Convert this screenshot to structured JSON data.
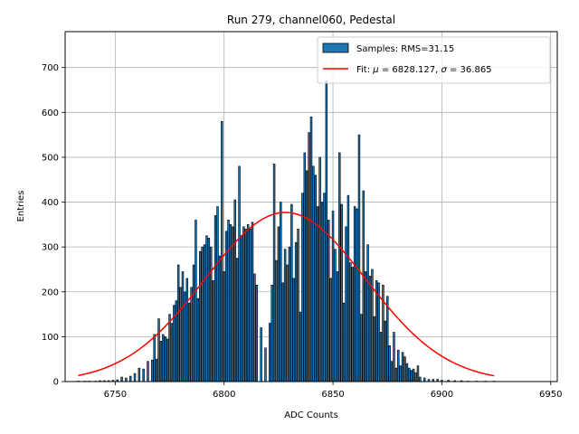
{
  "chart_data": {
    "type": "bar",
    "title": "Run 279, channel060, Pedestal",
    "xlabel": "ADC Counts",
    "ylabel": "Entries",
    "xlim": [
      6727,
      6953
    ],
    "ylim": [
      0,
      780
    ],
    "x_ticks": [
      6750,
      6800,
      6850,
      6900,
      6950
    ],
    "y_ticks": [
      0,
      100,
      200,
      300,
      400,
      500,
      600,
      700
    ],
    "grid": true,
    "legend_position": "top-right",
    "bar_color": "#1f77b4",
    "fit_color": "#ff0000",
    "series": [
      {
        "name": "Samples: RMS=31.15",
        "kind": "histogram",
        "bins": [
          [
            6733,
            1
          ],
          [
            6736,
            1
          ],
          [
            6738,
            1
          ],
          [
            6741,
            1
          ],
          [
            6743,
            2
          ],
          [
            6745,
            2
          ],
          [
            6747,
            2
          ],
          [
            6749,
            3
          ],
          [
            6751,
            4
          ],
          [
            6753,
            10
          ],
          [
            6755,
            8
          ],
          [
            6757,
            12
          ],
          [
            6759,
            18
          ],
          [
            6761,
            30
          ],
          [
            6763,
            28
          ],
          [
            6765,
            45
          ],
          [
            6767,
            48
          ],
          [
            6768,
            105
          ],
          [
            6769,
            50
          ],
          [
            6770,
            140
          ],
          [
            6771,
            90
          ],
          [
            6772,
            105
          ],
          [
            6773,
            100
          ],
          [
            6774,
            95
          ],
          [
            6775,
            150
          ],
          [
            6776,
            130
          ],
          [
            6777,
            170
          ],
          [
            6778,
            180
          ],
          [
            6779,
            260
          ],
          [
            6780,
            210
          ],
          [
            6781,
            245
          ],
          [
            6782,
            200
          ],
          [
            6783,
            230
          ],
          [
            6784,
            175
          ],
          [
            6785,
            210
          ],
          [
            6786,
            260
          ],
          [
            6787,
            360
          ],
          [
            6788,
            185
          ],
          [
            6789,
            290
          ],
          [
            6790,
            300
          ],
          [
            6791,
            305
          ],
          [
            6792,
            325
          ],
          [
            6793,
            320
          ],
          [
            6794,
            300
          ],
          [
            6795,
            225
          ],
          [
            6796,
            370
          ],
          [
            6797,
            390
          ],
          [
            6798,
            280
          ],
          [
            6799,
            580
          ],
          [
            6800,
            245
          ],
          [
            6801,
            335
          ],
          [
            6802,
            360
          ],
          [
            6803,
            350
          ],
          [
            6804,
            345
          ],
          [
            6805,
            405
          ],
          [
            6806,
            275
          ],
          [
            6807,
            480
          ],
          [
            6808,
            325
          ],
          [
            6809,
            345
          ],
          [
            6810,
            340
          ],
          [
            6811,
            350
          ],
          [
            6812,
            340
          ],
          [
            6813,
            355
          ],
          [
            6814,
            240
          ],
          [
            6815,
            215
          ],
          [
            6817,
            120
          ],
          [
            6819,
            75
          ],
          [
            6821,
            130
          ],
          [
            6822,
            215
          ],
          [
            6823,
            485
          ],
          [
            6824,
            270
          ],
          [
            6825,
            345
          ],
          [
            6826,
            400
          ],
          [
            6827,
            220
          ],
          [
            6828,
            295
          ],
          [
            6829,
            260
          ],
          [
            6830,
            300
          ],
          [
            6831,
            395
          ],
          [
            6832,
            230
          ],
          [
            6833,
            310
          ],
          [
            6834,
            340
          ],
          [
            6835,
            155
          ],
          [
            6836,
            420
          ],
          [
            6837,
            510
          ],
          [
            6838,
            470
          ],
          [
            6839,
            555
          ],
          [
            6840,
            590
          ],
          [
            6841,
            480
          ],
          [
            6842,
            460
          ],
          [
            6843,
            390
          ],
          [
            6844,
            500
          ],
          [
            6845,
            400
          ],
          [
            6846,
            420
          ],
          [
            6847,
            670
          ],
          [
            6848,
            360
          ],
          [
            6849,
            230
          ],
          [
            6850,
            380
          ],
          [
            6851,
            295
          ],
          [
            6852,
            245
          ],
          [
            6853,
            510
          ],
          [
            6854,
            395
          ],
          [
            6855,
            175
          ],
          [
            6856,
            345
          ],
          [
            6857,
            415
          ],
          [
            6858,
            265
          ],
          [
            6859,
            255
          ],
          [
            6860,
            390
          ],
          [
            6861,
            385
          ],
          [
            6862,
            550
          ],
          [
            6863,
            150
          ],
          [
            6864,
            425
          ],
          [
            6865,
            245
          ],
          [
            6866,
            305
          ],
          [
            6867,
            235
          ],
          [
            6868,
            250
          ],
          [
            6869,
            145
          ],
          [
            6870,
            225
          ],
          [
            6871,
            220
          ],
          [
            6872,
            110
          ],
          [
            6873,
            215
          ],
          [
            6874,
            135
          ],
          [
            6875,
            190
          ],
          [
            6876,
            80
          ],
          [
            6877,
            45
          ],
          [
            6878,
            110
          ],
          [
            6879,
            30
          ],
          [
            6880,
            70
          ],
          [
            6881,
            35
          ],
          [
            6882,
            65
          ],
          [
            6883,
            55
          ],
          [
            6884,
            40
          ],
          [
            6885,
            30
          ],
          [
            6886,
            25
          ],
          [
            6887,
            28
          ],
          [
            6888,
            20
          ],
          [
            6889,
            35
          ],
          [
            6890,
            10
          ],
          [
            6892,
            8
          ],
          [
            6894,
            5
          ],
          [
            6896,
            5
          ],
          [
            6898,
            5
          ],
          [
            6900,
            3
          ],
          [
            6903,
            3
          ],
          [
            6906,
            2
          ],
          [
            6909,
            2
          ],
          [
            6912,
            1
          ],
          [
            6916,
            1
          ],
          [
            6920,
            1
          ],
          [
            6924,
            1
          ]
        ]
      },
      {
        "name_prefix": "Fit: ",
        "name_mu": "μ",
        "name_mid": " = 6828.127, ",
        "name_sigma": "σ",
        "name_suffix": " = 36.865",
        "kind": "line",
        "mu": 6828.127,
        "sigma": 36.865,
        "amplitude": 377,
        "x_range": [
          6733,
          6924
        ]
      }
    ]
  }
}
